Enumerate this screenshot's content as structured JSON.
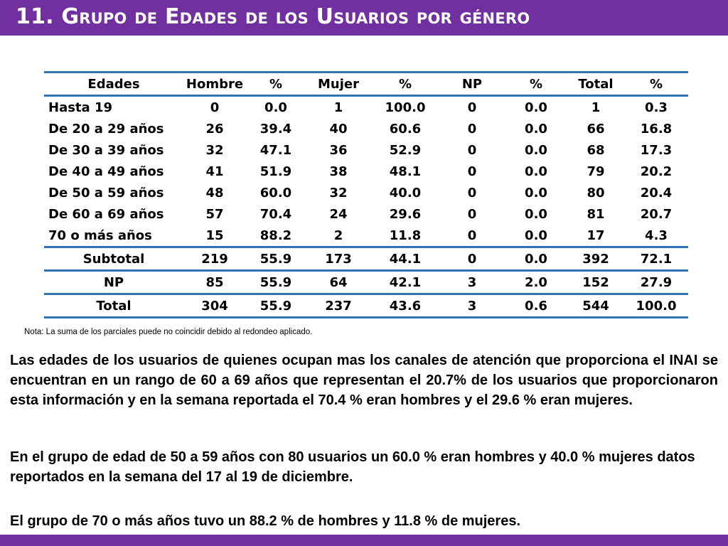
{
  "title": {
    "num": "11. ",
    "w1": "Grupo de ",
    "w2": "Edades de los ",
    "w3": "Usuarios por género"
  },
  "table": {
    "headers": [
      "Edades",
      "Hombre",
      "%",
      "Mujer",
      "%",
      "NP",
      "%",
      "Total",
      "%"
    ],
    "rows": [
      [
        "Hasta 19",
        "0",
        "0.0",
        "1",
        "100.0",
        "0",
        "0.0",
        "1",
        "0.3"
      ],
      [
        "De 20 a 29 años",
        "26",
        "39.4",
        "40",
        "60.6",
        "0",
        "0.0",
        "66",
        "16.8"
      ],
      [
        "De 30 a 39 años",
        "32",
        "47.1",
        "36",
        "52.9",
        "0",
        "0.0",
        "68",
        "17.3"
      ],
      [
        "De 40 a 49 años",
        "41",
        "51.9",
        "38",
        "48.1",
        "0",
        "0.0",
        "79",
        "20.2"
      ],
      [
        "De 50 a 59 años",
        "48",
        "60.0",
        "32",
        "40.0",
        "0",
        "0.0",
        "80",
        "20.4"
      ],
      [
        "De 60 a 69 años",
        "57",
        "70.4",
        "24",
        "29.6",
        "0",
        "0.0",
        "81",
        "20.7"
      ],
      [
        "70 o más años",
        "15",
        "88.2",
        "2",
        "11.8",
        "0",
        "0.0",
        "17",
        "4.3"
      ],
      [
        "Subtotal",
        "219",
        "55.9",
        "173",
        "44.1",
        "0",
        "0.0",
        "392",
        "72.1"
      ],
      [
        "NP",
        "85",
        "55.9",
        "64",
        "42.1",
        "3",
        "2.0",
        "152",
        "27.9"
      ],
      [
        "Total",
        "304",
        "55.9",
        "237",
        "43.6",
        "3",
        "0.6",
        "544",
        "100.0"
      ]
    ]
  },
  "note": "Nota: La suma de los parciales puede no coincidir debido al redondeo aplicado.",
  "paragraphs": [
    "Las edades de los usuarios de quienes ocupan mas los canales de atención que proporciona el INAI se encuentran en un rango de 60 a 69 años que representan el 20.7% de los usuarios que proporcionaron esta información y en la semana reportada el 70.4 % eran hombres y el 29.6 % eran mujeres.",
    "En el grupo de edad de 50 a 59 años con 80 usuarios un 60.0 % eran hombres y 40.0 %  mujeres datos reportados en la semana del 17 al 19 de diciembre.",
    "El grupo de 70 o más años tuvo un 88.2 % de hombres y 11.8 % de mujeres."
  ],
  "colors": {
    "accent": "#7030a0",
    "rule": "#2e75b6"
  }
}
